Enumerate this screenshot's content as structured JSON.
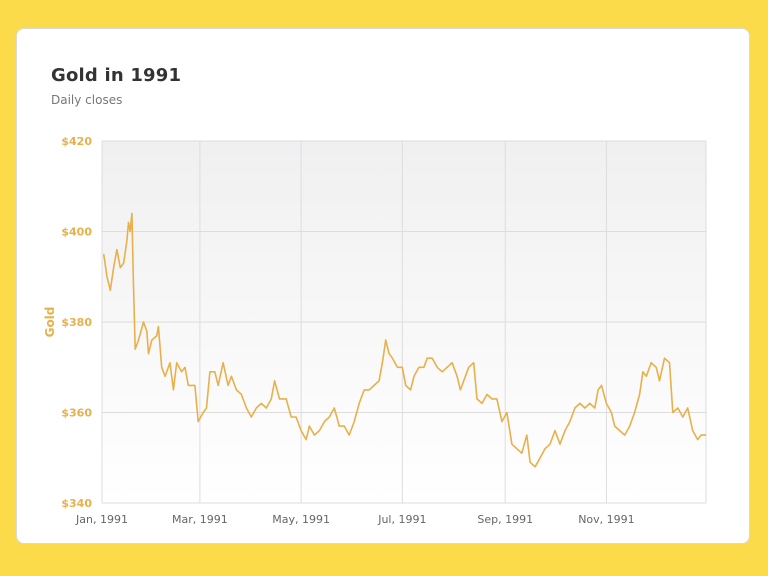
{
  "header": {
    "title": "Gold in 1991",
    "subtitle": "Daily closes"
  },
  "colors": {
    "line": "#e8b04b",
    "grid": "#dddddd",
    "plot_top": "#f0f0f1",
    "plot_bottom": "#ffffff",
    "frame": "#fbdb4a"
  },
  "chart_data": {
    "type": "line",
    "title": "Gold in 1991",
    "subtitle": "Daily closes",
    "xlabel": "",
    "ylabel": "Gold",
    "ylim": [
      340,
      420
    ],
    "yticks": [
      340,
      360,
      380,
      400,
      420
    ],
    "ytick_labels": [
      "$340",
      "$360",
      "$380",
      "$400",
      "$420"
    ],
    "xlim": [
      "1991-01-01",
      "1991-12-31"
    ],
    "xticks": [
      "1991-01-01",
      "1991-03-01",
      "1991-05-01",
      "1991-07-01",
      "1991-09-01",
      "1991-11-01"
    ],
    "xtick_labels": [
      "Jan, 1991",
      "Mar, 1991",
      "May, 1991",
      "Jul, 1991",
      "Sep, 1991",
      "Nov, 1991"
    ],
    "grid": true,
    "legend": "none",
    "series": [
      {
        "values": [
          [
            "1991-01-02",
            395
          ],
          [
            "1991-01-04",
            390
          ],
          [
            "1991-01-06",
            387
          ],
          [
            "1991-01-08",
            392
          ],
          [
            "1991-01-10",
            396
          ],
          [
            "1991-01-12",
            392
          ],
          [
            "1991-01-14",
            393
          ],
          [
            "1991-01-16",
            398
          ],
          [
            "1991-01-17",
            402
          ],
          [
            "1991-01-18",
            400
          ],
          [
            "1991-01-19",
            404
          ],
          [
            "1991-01-20",
            388
          ],
          [
            "1991-01-21",
            374
          ],
          [
            "1991-01-23",
            376
          ],
          [
            "1991-01-26",
            380
          ],
          [
            "1991-01-28",
            378
          ],
          [
            "1991-01-29",
            373
          ],
          [
            "1991-01-31",
            376
          ],
          [
            "1991-02-03",
            377
          ],
          [
            "1991-02-04",
            379
          ],
          [
            "1991-02-06",
            370
          ],
          [
            "1991-02-08",
            368
          ],
          [
            "1991-02-11",
            371
          ],
          [
            "1991-02-13",
            365
          ],
          [
            "1991-02-15",
            371
          ],
          [
            "1991-02-18",
            369
          ],
          [
            "1991-02-20",
            370
          ],
          [
            "1991-02-22",
            366
          ],
          [
            "1991-02-26",
            366
          ],
          [
            "1991-02-28",
            358
          ],
          [
            "1991-03-03",
            360
          ],
          [
            "1991-03-05",
            361
          ],
          [
            "1991-03-07",
            369
          ],
          [
            "1991-03-10",
            369
          ],
          [
            "1991-03-12",
            366
          ],
          [
            "1991-03-15",
            371
          ],
          [
            "1991-03-18",
            366
          ],
          [
            "1991-03-20",
            368
          ],
          [
            "1991-03-23",
            365
          ],
          [
            "1991-03-26",
            364
          ],
          [
            "1991-03-29",
            361
          ],
          [
            "1991-04-01",
            359
          ],
          [
            "1991-04-04",
            361
          ],
          [
            "1991-04-07",
            362
          ],
          [
            "1991-04-10",
            361
          ],
          [
            "1991-04-13",
            363
          ],
          [
            "1991-04-15",
            367
          ],
          [
            "1991-04-18",
            363
          ],
          [
            "1991-04-22",
            363
          ],
          [
            "1991-04-25",
            359
          ],
          [
            "1991-04-28",
            359
          ],
          [
            "1991-05-01",
            356
          ],
          [
            "1991-05-04",
            354
          ],
          [
            "1991-05-06",
            357
          ],
          [
            "1991-05-09",
            355
          ],
          [
            "1991-05-12",
            356
          ],
          [
            "1991-05-15",
            358
          ],
          [
            "1991-05-18",
            359
          ],
          [
            "1991-05-21",
            361
          ],
          [
            "1991-05-24",
            357
          ],
          [
            "1991-05-27",
            357
          ],
          [
            "1991-05-30",
            355
          ],
          [
            "1991-06-02",
            358
          ],
          [
            "1991-06-05",
            362
          ],
          [
            "1991-06-08",
            365
          ],
          [
            "1991-06-11",
            365
          ],
          [
            "1991-06-14",
            366
          ],
          [
            "1991-06-17",
            367
          ],
          [
            "1991-06-19",
            371
          ],
          [
            "1991-06-21",
            376
          ],
          [
            "1991-06-23",
            373
          ],
          [
            "1991-06-25",
            372
          ],
          [
            "1991-06-28",
            370
          ],
          [
            "1991-07-01",
            370
          ],
          [
            "1991-07-03",
            366
          ],
          [
            "1991-07-06",
            365
          ],
          [
            "1991-07-08",
            368
          ],
          [
            "1991-07-11",
            370
          ],
          [
            "1991-07-14",
            370
          ],
          [
            "1991-07-16",
            372
          ],
          [
            "1991-07-19",
            372
          ],
          [
            "1991-07-22",
            370
          ],
          [
            "1991-07-25",
            369
          ],
          [
            "1991-07-28",
            370
          ],
          [
            "1991-07-31",
            371
          ],
          [
            "1991-08-03",
            368
          ],
          [
            "1991-08-05",
            365
          ],
          [
            "1991-08-08",
            368
          ],
          [
            "1991-08-10",
            370
          ],
          [
            "1991-08-13",
            371
          ],
          [
            "1991-08-15",
            363
          ],
          [
            "1991-08-18",
            362
          ],
          [
            "1991-08-21",
            364
          ],
          [
            "1991-08-24",
            363
          ],
          [
            "1991-08-27",
            363
          ],
          [
            "1991-08-30",
            358
          ],
          [
            "1991-09-02",
            360
          ],
          [
            "1991-09-05",
            353
          ],
          [
            "1991-09-08",
            352
          ],
          [
            "1991-09-11",
            351
          ],
          [
            "1991-09-14",
            355
          ],
          [
            "1991-09-16",
            349
          ],
          [
            "1991-09-19",
            348
          ],
          [
            "1991-09-22",
            350
          ],
          [
            "1991-09-25",
            352
          ],
          [
            "1991-09-28",
            353
          ],
          [
            "1991-10-01",
            356
          ],
          [
            "1991-10-04",
            353
          ],
          [
            "1991-10-07",
            356
          ],
          [
            "1991-10-10",
            358
          ],
          [
            "1991-10-13",
            361
          ],
          [
            "1991-10-16",
            362
          ],
          [
            "1991-10-19",
            361
          ],
          [
            "1991-10-22",
            362
          ],
          [
            "1991-10-25",
            361
          ],
          [
            "1991-10-27",
            365
          ],
          [
            "1991-10-29",
            366
          ],
          [
            "1991-11-01",
            362
          ],
          [
            "1991-11-04",
            360
          ],
          [
            "1991-11-06",
            357
          ],
          [
            "1991-11-09",
            356
          ],
          [
            "1991-11-12",
            355
          ],
          [
            "1991-11-15",
            357
          ],
          [
            "1991-11-18",
            360
          ],
          [
            "1991-11-21",
            364
          ],
          [
            "1991-11-23",
            369
          ],
          [
            "1991-11-25",
            368
          ],
          [
            "1991-11-28",
            371
          ],
          [
            "1991-12-01",
            370
          ],
          [
            "1991-12-03",
            367
          ],
          [
            "1991-12-06",
            372
          ],
          [
            "1991-12-09",
            371
          ],
          [
            "1991-12-11",
            360
          ],
          [
            "1991-12-14",
            361
          ],
          [
            "1991-12-17",
            359
          ],
          [
            "1991-12-20",
            361
          ],
          [
            "1991-12-23",
            356
          ],
          [
            "1991-12-26",
            354
          ],
          [
            "1991-12-28",
            355
          ],
          [
            "1991-12-31",
            355
          ]
        ]
      }
    ]
  }
}
